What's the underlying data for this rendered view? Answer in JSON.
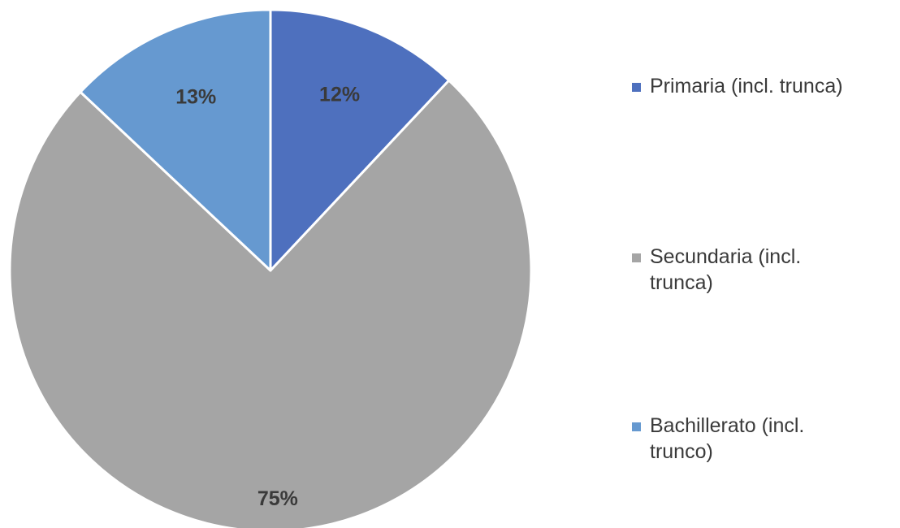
{
  "chart_data": {
    "type": "pie",
    "title": "",
    "categories": [
      "Primaria (incl. trunca)",
      "Secundaria (incl. trunca)",
      "Bachillerato (incl. trunco)"
    ],
    "values": [
      12,
      75,
      13
    ],
    "value_labels": [
      "12%",
      "75%",
      "13%"
    ],
    "colors": [
      "#4e70be",
      "#a5a5a5",
      "#6699d0"
    ],
    "start_angle": "12 o'clock",
    "direction": "clockwise",
    "legend_position": "right"
  },
  "legend": {
    "items": [
      {
        "label": "Primaria (incl. trunca)",
        "color": "#4e70be"
      },
      {
        "label": "Secundaria (incl. trunca)",
        "color": "#a5a5a5"
      },
      {
        "label": "Bachillerato (incl. trunco)",
        "color": "#6699d0"
      }
    ]
  }
}
